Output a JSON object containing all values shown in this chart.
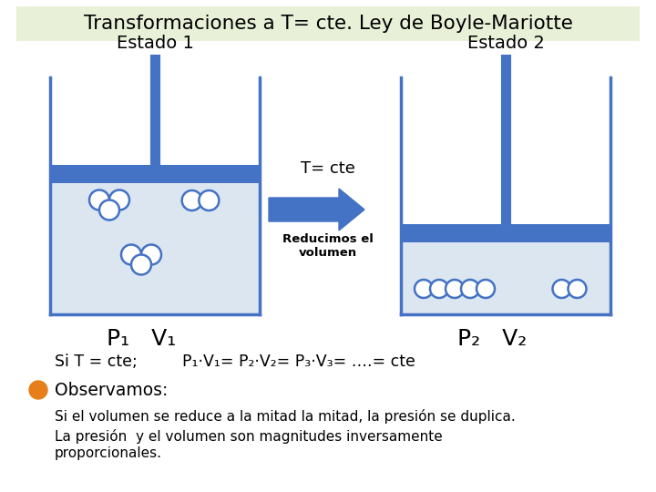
{
  "title": "Transformaciones a T= cte. Ley de Boyle-Mariotte",
  "title_bg": "#e8f0d8",
  "estado1_label": "Estado 1",
  "estado2_label": "Estado 2",
  "tcte_label": "T= cte",
  "reducimos_label": "Reducimos el\nvolumen",
  "p1v1_label": "P₁   V₁",
  "p2v2_label": "P₂   V₂",
  "si_t_label": "Si T = cte;",
  "formula_label": "P₁·V₁= P₂·V₂= P₃·V₃= ….= cte",
  "observamos_label": "Observamos:",
  "obs1": "Si el volumen se reduce a la mitad la mitad, la presión se duplica.",
  "obs2": "La presión  y el volumen son magnitudes inversamente\nproporcionales.",
  "container_border": "#4472c4",
  "container_fill_light": "#dce6f1",
  "piston_color": "#4472c4",
  "arrow_color": "#4472c4",
  "molecule_edge": "#4472c4",
  "molecule_face": "white",
  "bullet_color": "#e67f1a",
  "bg_color": "white",
  "text_color": "black"
}
